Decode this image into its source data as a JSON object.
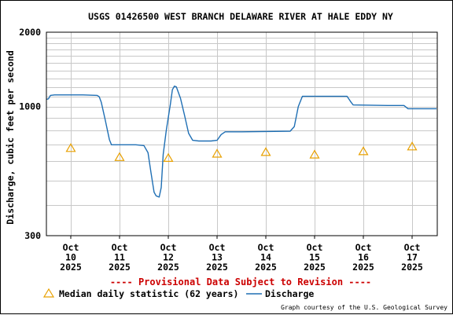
{
  "chart_data": {
    "type": "line",
    "title": "USGS 01426500 WEST BRANCH DELAWARE RIVER AT HALE EDDY NY",
    "ylabel": "Discharge, cubic feet per second",
    "xlabel": "",
    "y_scale": "log",
    "ylim": [
      300,
      2000
    ],
    "y_ticks": [
      300,
      1000,
      2000
    ],
    "y_tick_labels": [
      "300",
      "1000",
      "2000"
    ],
    "x_ticks": [
      {
        "date": "2025-10-10",
        "month": "Oct",
        "day": "10",
        "year": "2025"
      },
      {
        "date": "2025-10-11",
        "month": "Oct",
        "day": "11",
        "year": "2025"
      },
      {
        "date": "2025-10-12",
        "month": "Oct",
        "day": "12",
        "year": "2025"
      },
      {
        "date": "2025-10-13",
        "month": "Oct",
        "day": "13",
        "year": "2025"
      },
      {
        "date": "2025-10-14",
        "month": "Oct",
        "day": "14",
        "year": "2025"
      },
      {
        "date": "2025-10-15",
        "month": "Oct",
        "day": "15",
        "year": "2025"
      },
      {
        "date": "2025-10-16",
        "month": "Oct",
        "day": "16",
        "year": "2025"
      },
      {
        "date": "2025-10-17",
        "month": "Oct",
        "day": "17",
        "year": "2025"
      }
    ],
    "grid": true,
    "colors": {
      "discharge": "#1f6fb4",
      "median": "#e8a000",
      "provisional": "#cc0000"
    },
    "series": [
      {
        "name": "Discharge",
        "style": "line",
        "points": [
          [
            "2025-10-09 12:00",
            1070
          ],
          [
            "2025-10-09 13:00",
            1075
          ],
          [
            "2025-10-09 14:00",
            1110
          ],
          [
            "2025-10-09 16:00",
            1115
          ],
          [
            "2025-10-10 06:00",
            1115
          ],
          [
            "2025-10-10 13:00",
            1110
          ],
          [
            "2025-10-10 14:00",
            1095
          ],
          [
            "2025-10-10 15:00",
            1040
          ],
          [
            "2025-10-10 17:00",
            880
          ],
          [
            "2025-10-10 19:00",
            735
          ],
          [
            "2025-10-10 20:00",
            700
          ],
          [
            "2025-10-11 08:00",
            700
          ],
          [
            "2025-10-11 12:00",
            695
          ],
          [
            "2025-10-11 14:00",
            650
          ],
          [
            "2025-10-11 15:30",
            540
          ],
          [
            "2025-10-11 17:00",
            450
          ],
          [
            "2025-10-11 18:00",
            435
          ],
          [
            "2025-10-11 19:30",
            430
          ],
          [
            "2025-10-11 20:30",
            470
          ],
          [
            "2025-10-11 21:30",
            640
          ],
          [
            "2025-10-11 23:00",
            800
          ],
          [
            "2025-10-12 01:00",
            1020
          ],
          [
            "2025-10-12 02:00",
            1170
          ],
          [
            "2025-10-12 03:00",
            1210
          ],
          [
            "2025-10-12 04:00",
            1200
          ],
          [
            "2025-10-12 06:00",
            1080
          ],
          [
            "2025-10-12 08:00",
            920
          ],
          [
            "2025-10-12 10:00",
            780
          ],
          [
            "2025-10-12 12:00",
            730
          ],
          [
            "2025-10-12 15:00",
            725
          ],
          [
            "2025-10-12 21:00",
            725
          ],
          [
            "2025-10-13 00:00",
            730
          ],
          [
            "2025-10-13 02:00",
            770
          ],
          [
            "2025-10-13 04:00",
            790
          ],
          [
            "2025-10-13 12:00",
            790
          ],
          [
            "2025-10-14 12:00",
            795
          ],
          [
            "2025-10-14 14:00",
            830
          ],
          [
            "2025-10-14 16:00",
            1000
          ],
          [
            "2025-10-14 18:00",
            1100
          ],
          [
            "2025-10-15 06:00",
            1100
          ],
          [
            "2025-10-15 16:00",
            1100
          ],
          [
            "2025-10-15 18:00",
            1040
          ],
          [
            "2025-10-15 19:00",
            1015
          ],
          [
            "2025-10-16 12:00",
            1010
          ],
          [
            "2025-10-16 20:00",
            1010
          ],
          [
            "2025-10-16 22:00",
            980
          ],
          [
            "2025-10-17 12:00",
            980
          ]
        ]
      },
      {
        "name": "Median daily statistic (62 years)",
        "style": "triangle",
        "points": [
          [
            "2025-10-10 00:00",
            680
          ],
          [
            "2025-10-11 00:00",
            625
          ],
          [
            "2025-10-12 00:00",
            620
          ],
          [
            "2025-10-13 00:00",
            645
          ],
          [
            "2025-10-14 00:00",
            655
          ],
          [
            "2025-10-15 00:00",
            640
          ],
          [
            "2025-10-16 00:00",
            660
          ],
          [
            "2025-10-17 00:00",
            690
          ]
        ]
      }
    ]
  },
  "legend": {
    "median_label": "Median daily statistic (62 years)",
    "discharge_label": "Discharge"
  },
  "provisional_text": "---- Provisional Data Subject to Revision ----",
  "credit": "Graph courtesy of the U.S. Geological Survey"
}
